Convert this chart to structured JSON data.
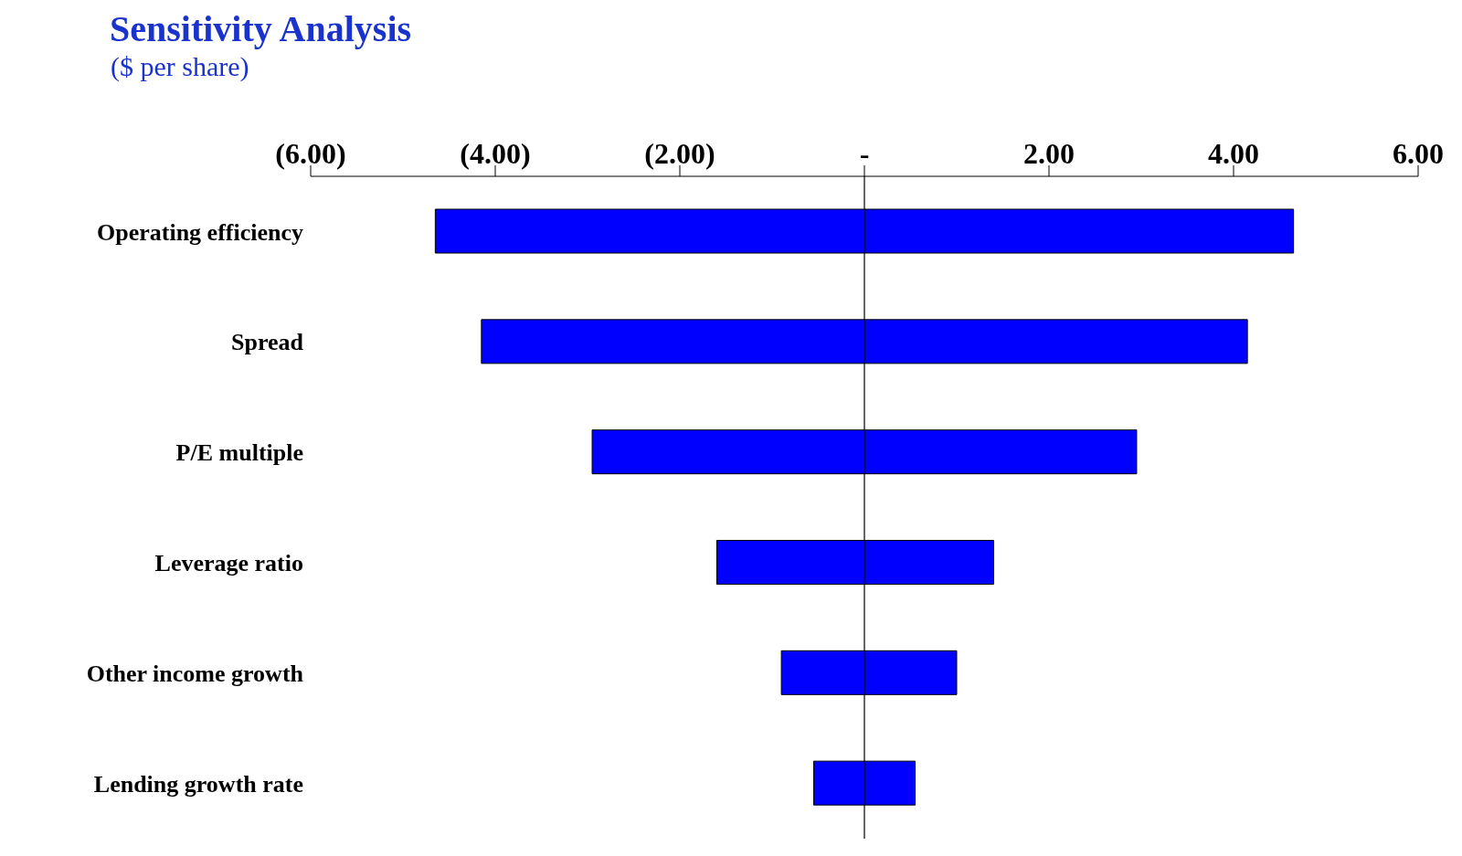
{
  "chart_data": {
    "type": "bar",
    "orientation": "horizontal",
    "title": "Sensitivity Analysis",
    "subtitle": "($ per share)",
    "categories": [
      "Operating efficiency",
      "Spread",
      "P/E multiple",
      "Leverage ratio",
      "Other income growth",
      "Lending growth rate"
    ],
    "base": [
      -4.65,
      -4.15,
      -2.95,
      -1.6,
      -0.9,
      -0.55
    ],
    "values": [
      9.3,
      8.3,
      5.9,
      3.0,
      1.9,
      1.1
    ],
    "color": "#0000ff",
    "xlim": [
      -6,
      6
    ],
    "xticks": [
      {
        "value": -6,
        "label": "(6.00)"
      },
      {
        "value": -4,
        "label": "(4.00)"
      },
      {
        "value": -2,
        "label": "(2.00)"
      },
      {
        "value": 0,
        "label": "-"
      },
      {
        "value": 2,
        "label": "2.00"
      },
      {
        "value": 4,
        "label": "4.00"
      },
      {
        "value": 6,
        "label": "6.00"
      }
    ],
    "ref_lines": [
      {
        "axis": "x",
        "value": 0,
        "color": "#000000"
      }
    ],
    "grid": false,
    "legend": false
  }
}
